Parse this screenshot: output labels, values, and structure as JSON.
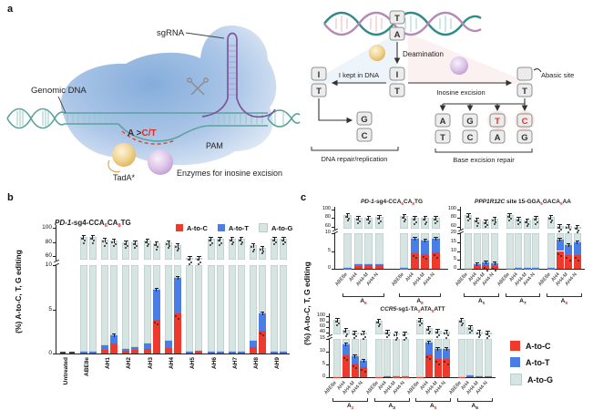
{
  "panel_a": {
    "label": "a",
    "left": {
      "sgrna": "sgRNA",
      "genomic_dna": "Genomic DNA",
      "edit_black": "A >",
      "edit_red": "C/T",
      "pam": "PAM",
      "tada": "TadA*",
      "enzymes": "Enzymes for inosine excision"
    },
    "right": {
      "deamination": "Deamination",
      "kept": "I kept in DNA",
      "excision": "Inosine excision",
      "abasic": "Abasic site",
      "repair": "DNA repair/replication",
      "ber": "Base excision repair",
      "top_pair": [
        "T",
        "A"
      ],
      "center_pair": [
        "I",
        "T"
      ],
      "left_pair": [
        "I",
        "T"
      ],
      "repair_pair": [
        "G",
        "C"
      ],
      "abasic_pair": [
        "",
        "T"
      ],
      "ber_pairs": [
        [
          "A",
          "T"
        ],
        [
          "G",
          "C"
        ],
        [
          "T",
          "A"
        ],
        [
          "C",
          "G"
        ]
      ]
    }
  },
  "panel_b": {
    "label": "b"
  },
  "panel_c": {
    "label": "c",
    "ylabel": "(%) A-to-C, T, G editing"
  },
  "legend": {
    "items": [
      {
        "label": "A-to-C",
        "color": "#ee3a2d"
      },
      {
        "label": "A-to-T",
        "color": "#4b7ee5"
      },
      {
        "label": "A-to-G",
        "color": "#d7e5e2"
      }
    ]
  },
  "colors": {
    "a_to_c": "#ee3a2d",
    "a_to_t": "#4b7ee5",
    "a_to_g": "#d7e5e2",
    "red_text": "#d93025",
    "axis": "#222222"
  },
  "chart_data": [
    {
      "id": "b",
      "type": "bar",
      "stacked": true,
      "title_segments": [
        {
          "text": "PD-1",
          "italic": true
        },
        {
          "text": "-sg4-CCA"
        },
        {
          "text": "6",
          "sub": true,
          "red": true
        },
        {
          "text": "CA"
        },
        {
          "text": "8",
          "sub": true,
          "red": true
        },
        {
          "text": "TG"
        }
      ],
      "ylabel": "(%) A-to-C, T, G editing",
      "series_names": [
        "A-to-C",
        "A-to-T",
        "A-to-G"
      ],
      "axis": {
        "lower": [
          0,
          10
        ],
        "lower_ticks": [
          0,
          5,
          10
        ],
        "upper": [
          55,
          100
        ],
        "upper_ticks": [
          60,
          80,
          100
        ]
      },
      "groups": [
        {
          "label": "Untreated",
          "bars": [
            [
              0,
              0,
              0
            ],
            [
              0,
              0,
              0
            ]
          ]
        },
        {
          "label": "ABE8e",
          "bars": [
            [
              0.1,
              0.1,
              86.8
            ],
            [
              0.1,
              0.1,
              86.8
            ]
          ]
        },
        {
          "label": "AH1",
          "bars": [
            [
              0.4,
              0.5,
              82.1
            ],
            [
              1.1,
              1.0,
              79.9
            ]
          ]
        },
        {
          "label": "AH2",
          "bars": [
            [
              0.3,
              0.2,
              79.5
            ],
            [
              0.4,
              0.3,
              79.3
            ]
          ]
        },
        {
          "label": "AH3",
          "bars": [
            [
              0.5,
              0.6,
              80.9
            ],
            [
              3.8,
              3.4,
              70.8
            ]
          ]
        },
        {
          "label": "AH4",
          "bars": [
            [
              0.6,
              0.8,
              78.6
            ],
            [
              4.5,
              4.1,
              67.4
            ]
          ]
        },
        {
          "label": "AH5",
          "bars": [
            [
              0.1,
              0.1,
              56.8
            ],
            [
              0.2,
              0.1,
              56.7
            ]
          ]
        },
        {
          "label": "AH6",
          "bars": [
            [
              0.1,
              0.1,
              83.8
            ],
            [
              0.1,
              0.1,
              83.8
            ]
          ]
        },
        {
          "label": "AH7",
          "bars": [
            [
              0.1,
              0.1,
              84.8
            ],
            [
              0.1,
              0.1,
              84.8
            ]
          ]
        },
        {
          "label": "AH8",
          "bars": [
            [
              0.7,
              0.7,
              73.6
            ],
            [
              2.6,
              1.9,
              67.5
            ]
          ]
        },
        {
          "label": "AH9",
          "bars": [
            [
              0.1,
              0.1,
              84.8
            ],
            [
              0.1,
              0.1,
              84.8
            ]
          ]
        }
      ]
    },
    {
      "id": "c1",
      "type": "bar",
      "stacked": true,
      "title_segments": [
        {
          "text": "PD-1",
          "italic": true
        },
        {
          "text": "-sg4-CCA"
        },
        {
          "text": "6",
          "sub": true,
          "red": true
        },
        {
          "text": "CA"
        },
        {
          "text": "8",
          "sub": true,
          "red": true
        },
        {
          "text": "TG"
        }
      ],
      "series_names": [
        "A-to-C",
        "A-to-T",
        "A-to-G"
      ],
      "bar_names": [
        "ABE8e",
        "AH4",
        "AH4-M",
        "AH4-N"
      ],
      "axis": {
        "lower": [
          0,
          10
        ],
        "lower_ticks": [
          0,
          5,
          10
        ],
        "upper": [
          55,
          100
        ],
        "upper_ticks": [
          60,
          80,
          100
        ]
      },
      "groups": [
        {
          "glabel": {
            "base": "A",
            "sub": "6",
            "red": true
          },
          "bars": [
            [
              0.1,
              0.1,
              86.8
            ],
            [
              0.8,
              0.4,
              79.8
            ],
            [
              0.9,
              0.5,
              79.6
            ],
            [
              1.0,
              0.4,
              80.6
            ]
          ]
        },
        {
          "glabel": {
            "base": "A",
            "sub": "8",
            "red": true
          },
          "bars": [
            [
              0.1,
              0.1,
              85.8
            ],
            [
              4.3,
              4.2,
              71.5
            ],
            [
              4.2,
              3.8,
              72.0
            ],
            [
              4.5,
              4.0,
              72.5
            ]
          ]
        }
      ]
    },
    {
      "id": "c2",
      "type": "bar",
      "stacked": true,
      "title_segments": [
        {
          "text": "PPP1R12C",
          "italic": true
        },
        {
          "text": " site 15-GGA"
        },
        {
          "text": "5",
          "sub": true,
          "red": true
        },
        {
          "text": "GACA"
        },
        {
          "text": "9",
          "sub": true,
          "red": true
        },
        {
          "text": "AA"
        }
      ],
      "series_names": [
        "A-to-C",
        "A-to-T",
        "A-to-G"
      ],
      "bar_names": [
        "ABE8e",
        "AH4",
        "AH4-M",
        "AH4-N"
      ],
      "axis": {
        "lower": [
          0,
          20
        ],
        "lower_ticks": [
          0,
          5,
          10,
          15,
          20
        ],
        "upper": [
          55,
          100
        ],
        "upper_ticks": [
          60,
          80,
          100
        ]
      },
      "groups": [
        {
          "glabel": {
            "base": "A",
            "sub": "5",
            "red": true
          },
          "bars": [
            [
              0.1,
              0.1,
              86.8
            ],
            [
              1.5,
              1.2,
              73.3
            ],
            [
              1.8,
              1.7,
              69.5
            ],
            [
              1.7,
              1.2,
              76.1
            ]
          ]
        },
        {
          "glabel": {
            "base": "A",
            "sub": "7",
            "red": false
          },
          "bars": [
            [
              0.1,
              0.0,
              86.9
            ],
            [
              0.2,
              0.1,
              78.7
            ],
            [
              0.2,
              0.1,
              74.7
            ],
            [
              0.2,
              0.1,
              79.7
            ]
          ]
        },
        {
          "glabel": {
            "base": "A",
            "sub": "9",
            "red": true
          },
          "bars": [
            [
              0.2,
              0.1,
              82.7
            ],
            [
              10.0,
              6.5,
              45.5
            ],
            [
              7.5,
              6.0,
              47.5
            ],
            [
              7.5,
              7.5,
              45.0
            ]
          ]
        }
      ]
    },
    {
      "id": "c3",
      "type": "bar",
      "stacked": true,
      "title_segments": [
        {
          "text": "CCR5",
          "italic": true
        },
        {
          "text": "-sg1-TA"
        },
        {
          "text": "2",
          "sub": true,
          "red": true
        },
        {
          "text": "ATA"
        },
        {
          "text": "5",
          "sub": true,
          "red": true
        },
        {
          "text": "ATT"
        }
      ],
      "series_names": [
        "A-to-C",
        "A-to-T",
        "A-to-G"
      ],
      "bar_names": [
        "ABE8e",
        "AH4",
        "AH4-M",
        "AH4-N"
      ],
      "axis": {
        "lower": [
          0,
          15
        ],
        "lower_ticks": [
          0,
          5,
          10,
          15
        ],
        "upper": [
          35,
          100
        ],
        "upper_ticks": [
          40,
          60,
          80,
          100
        ]
      },
      "groups": [
        {
          "glabel": {
            "base": "A",
            "sub": "2",
            "red": true
          },
          "bars": [
            [
              0.1,
              0.0,
              87.9
            ],
            [
              8.5,
              4.5,
              37.0
            ],
            [
              5.5,
              2.7,
              34.8
            ],
            [
              4.0,
              2.5,
              33.5
            ]
          ]
        },
        {
          "glabel": {
            "base": "A",
            "sub": "3",
            "red": false
          },
          "bars": [
            [
              0.1,
              0.0,
              84.9
            ],
            [
              0.2,
              0.1,
              44.7
            ],
            [
              0.1,
              0.1,
              36.8
            ],
            [
              0.1,
              0.1,
              36.8
            ]
          ]
        },
        {
          "glabel": {
            "base": "A",
            "sub": "5",
            "red": true
          },
          "bars": [
            [
              0.1,
              0.0,
              87.9
            ],
            [
              9.0,
              4.5,
              44.5
            ],
            [
              7.0,
              4.0,
              36.0
            ],
            [
              7.0,
              4.2,
              32.8
            ]
          ]
        },
        {
          "glabel": {
            "base": "A",
            "sub": "6",
            "red": false
          },
          "bars": [
            [
              0.1,
              0.0,
              86.9
            ],
            [
              0.3,
              0.3,
              61.4
            ],
            [
              0.2,
              0.2,
              45.6
            ],
            [
              0.2,
              0.2,
              41.6
            ]
          ]
        }
      ]
    }
  ]
}
